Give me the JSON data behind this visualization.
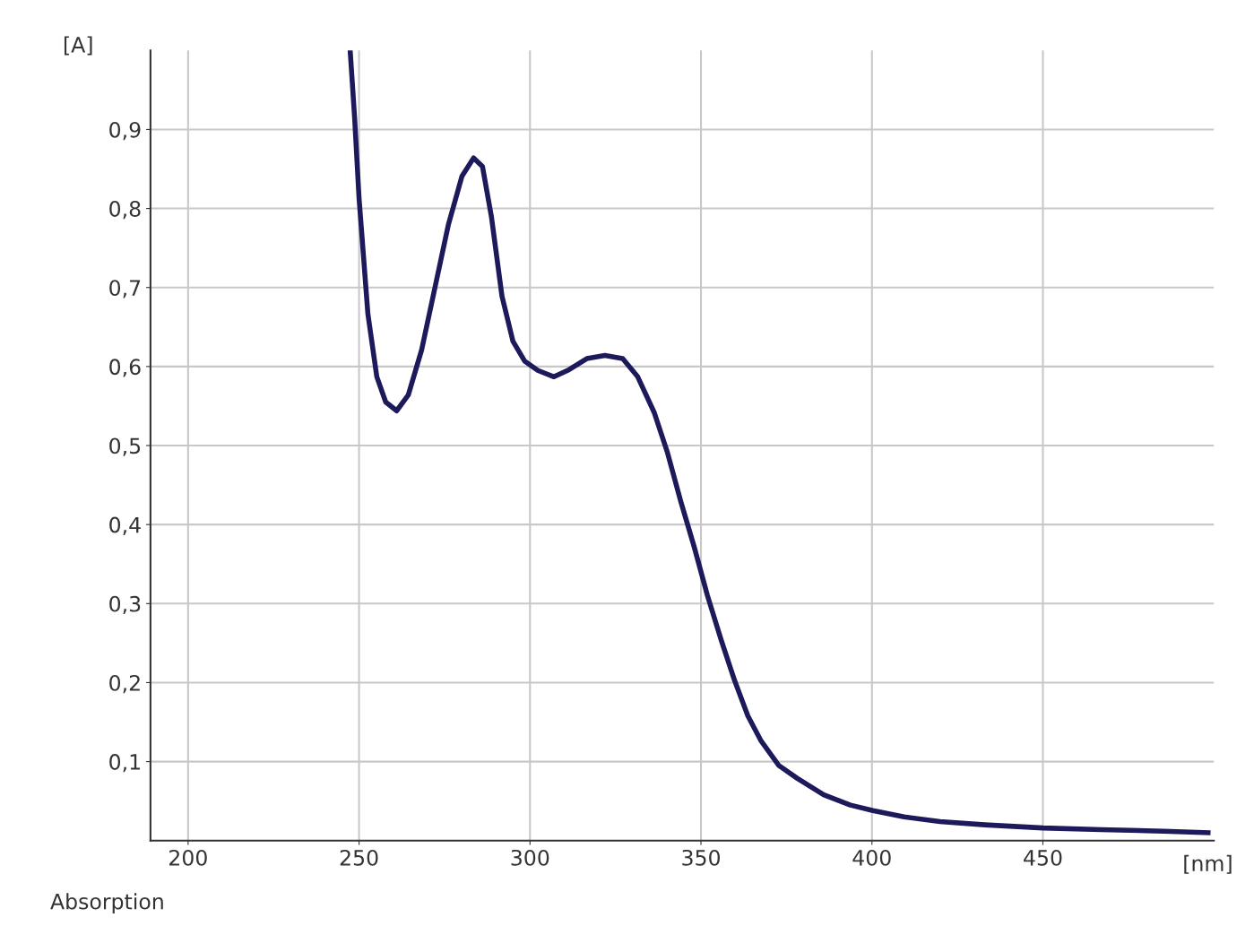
{
  "chart_data": {
    "type": "line",
    "xlabel": "[nm]",
    "ylabel": "[A]",
    "annotations": [
      "Absorption"
    ],
    "x": [
      247.4,
      248.7,
      250,
      252.6,
      255.2,
      257.8,
      261,
      264.4,
      268.3,
      272.2,
      276.1,
      280.1,
      283.5,
      286.1,
      288.7,
      291.8,
      295,
      298.4,
      302.3,
      307,
      311.4,
      316.6,
      321.9,
      327.1,
      331.5,
      336.3,
      340.2,
      344.1,
      348,
      351.9,
      355.9,
      359.8,
      363.7,
      367.6,
      372.8,
      378.1,
      385.9,
      393.7,
      400.3,
      409.4,
      419.9,
      433,
      450,
      467,
      485.2,
      498.3
    ],
    "series": [
      {
        "color": "#1c1a5a",
        "values": [
          1.0,
          0.915,
          0.813,
          0.666,
          0.587,
          0.555,
          0.544,
          0.564,
          0.621,
          0.7,
          0.779,
          0.841,
          0.864,
          0.853,
          0.79,
          0.689,
          0.632,
          0.607,
          0.595,
          0.587,
          0.596,
          0.61,
          0.614,
          0.61,
          0.587,
          0.542,
          0.491,
          0.429,
          0.372,
          0.31,
          0.254,
          0.203,
          0.158,
          0.126,
          0.095,
          0.079,
          0.058,
          0.045,
          0.038,
          0.03,
          0.024,
          0.02,
          0.016,
          0.014,
          0.012,
          0.01
        ]
      }
    ],
    "xlim": [
      189,
      500
    ],
    "ylim": [
      0,
      1.0
    ],
    "xticks": [
      200,
      250,
      300,
      350,
      400,
      450
    ],
    "yticks": [
      {
        "value": 0.1,
        "label": "0,1"
      },
      {
        "value": 0.2,
        "label": "0,2"
      },
      {
        "value": 0.3,
        "label": "0,3"
      },
      {
        "value": 0.4,
        "label": "0,4"
      },
      {
        "value": 0.5,
        "label": "0,5"
      },
      {
        "value": 0.6,
        "label": "0,6"
      },
      {
        "value": 0.7,
        "label": "0,7"
      },
      {
        "value": 0.8,
        "label": "0,8"
      },
      {
        "value": 0.9,
        "label": "0,9"
      }
    ],
    "grid": true,
    "marker": "none",
    "line_style": "solid"
  }
}
